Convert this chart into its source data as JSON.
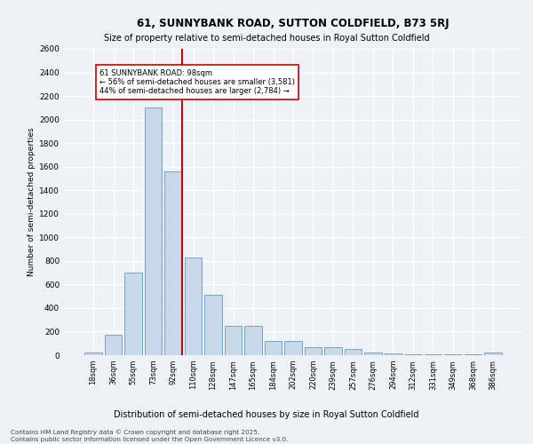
{
  "title": "61, SUNNYBANK ROAD, SUTTON COLDFIELD, B73 5RJ",
  "subtitle": "Size of property relative to semi-detached houses in Royal Sutton Coldfield",
  "xlabel": "Distribution of semi-detached houses by size in Royal Sutton Coldfield",
  "ylabel": "Number of semi-detached properties",
  "categories": [
    "18sqm",
    "36sqm",
    "55sqm",
    "73sqm",
    "92sqm",
    "110sqm",
    "128sqm",
    "147sqm",
    "165sqm",
    "184sqm",
    "202sqm",
    "220sqm",
    "239sqm",
    "257sqm",
    "276sqm",
    "294sqm",
    "312sqm",
    "331sqm",
    "349sqm",
    "368sqm",
    "386sqm"
  ],
  "values": [
    20,
    175,
    700,
    2100,
    1560,
    830,
    510,
    250,
    250,
    120,
    120,
    70,
    65,
    55,
    20,
    15,
    5,
    5,
    5,
    5,
    20
  ],
  "bar_color": "#c8d8ea",
  "bar_edge_color": "#6699bb",
  "property_line_color": "#cc0000",
  "annotation_title": "61 SUNNYBANK ROAD: 98sqm",
  "annotation_line1": "← 56% of semi-detached houses are smaller (3,581)",
  "annotation_line2": "44% of semi-detached houses are larger (2,784) →",
  "annotation_box_color": "#ffffff",
  "annotation_box_edge_color": "#cc0000",
  "ylim": [
    0,
    2600
  ],
  "yticks": [
    0,
    200,
    400,
    600,
    800,
    1000,
    1200,
    1400,
    1600,
    1800,
    2000,
    2200,
    2400,
    2600
  ],
  "footer_line1": "Contains HM Land Registry data © Crown copyright and database right 2025.",
  "footer_line2": "Contains public sector information licensed under the Open Government Licence v3.0.",
  "bg_color": "#eef2f7",
  "plot_bg_color": "#eef2f7"
}
